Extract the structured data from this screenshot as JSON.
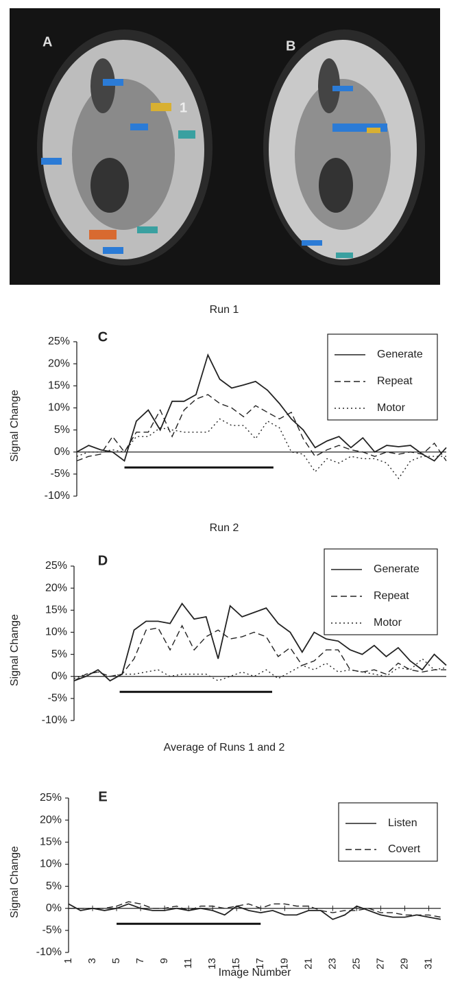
{
  "image_panel": {
    "labels": [
      "A",
      "B",
      "1"
    ]
  },
  "chart_data": [
    {
      "type": "line",
      "title": "Run 1",
      "panel_label": "C",
      "y_label": "Signal Change",
      "x": [
        1,
        2,
        3,
        4,
        5,
        6,
        7,
        8,
        9,
        10,
        11,
        12,
        13,
        14,
        15,
        16,
        17,
        18,
        19,
        20,
        21,
        22,
        23,
        24,
        25,
        26,
        27,
        28,
        29,
        30,
        31,
        32
      ],
      "xlim": [
        1,
        32
      ],
      "ylim": [
        -10,
        25
      ],
      "yticks": [
        {
          "value": 25,
          "label": "25%"
        },
        {
          "value": 20,
          "label": "20%"
        },
        {
          "value": 15,
          "label": "15%"
        },
        {
          "value": 10,
          "label": "10%"
        },
        {
          "value": 5,
          "label": "5%"
        },
        {
          "value": 0,
          "label": "0%"
        },
        {
          "value": -5,
          "label": "-5%"
        },
        {
          "value": -10,
          "label": "-10%"
        }
      ],
      "series": [
        {
          "name": "Generate",
          "color": "#222222",
          "style": "solid",
          "values": [
            0,
            1.5,
            0.5,
            0,
            -2,
            7,
            9.5,
            5,
            11.5,
            11.5,
            13,
            22,
            16.5,
            14.5,
            15.2,
            16,
            14,
            11,
            7.5,
            5,
            1,
            2.5,
            3.5,
            1,
            3.2,
            0,
            1.5,
            1.2,
            1.5,
            -0.5,
            -2,
            1
          ]
        },
        {
          "name": "Repeat",
          "color": "#222222",
          "style": "dashed",
          "values": [
            -2,
            -1,
            -0.5,
            3.5,
            0,
            4.5,
            4.5,
            9.5,
            3.5,
            9.5,
            12,
            13,
            11,
            10,
            8,
            10.5,
            9,
            7.5,
            9,
            3,
            -1,
            0.5,
            1.5,
            0.5,
            0,
            -1,
            0,
            -0.5,
            0,
            -0.5,
            2,
            -2
          ]
        },
        {
          "name": "Motor",
          "color": "#222222",
          "style": "dotted",
          "values": [
            -1,
            0,
            0,
            0.5,
            0,
            3.5,
            3.5,
            5.5,
            5,
            4.5,
            4.5,
            4.5,
            7.5,
            6,
            6,
            3,
            7,
            5.5,
            0,
            -0.5,
            -4.5,
            -1.5,
            -2.5,
            -1,
            -1.5,
            -1.5,
            -2.5,
            -6,
            -2,
            -1,
            -1,
            -1
          ]
        }
      ]
    },
    {
      "type": "line",
      "title": "Run 2",
      "panel_label": "D",
      "y_label": "Signal Change",
      "x": [
        1,
        2,
        3,
        4,
        5,
        6,
        7,
        8,
        9,
        10,
        11,
        12,
        13,
        14,
        15,
        16,
        17,
        18,
        19,
        20,
        21,
        22,
        23,
        24,
        25,
        26,
        27,
        28,
        29,
        30,
        31,
        32
      ],
      "xlim": [
        1,
        32
      ],
      "ylim": [
        -10,
        25
      ],
      "yticks": [
        {
          "value": 25,
          "label": "25%"
        },
        {
          "value": 20,
          "label": "20%"
        },
        {
          "value": 15,
          "label": "15%"
        },
        {
          "value": 10,
          "label": "10%"
        },
        {
          "value": 5,
          "label": "5%"
        },
        {
          "value": 0,
          "label": "0%"
        },
        {
          "value": -5,
          "label": "-5%"
        },
        {
          "value": -10,
          "label": "-10%"
        }
      ],
      "series": [
        {
          "name": "Generate",
          "color": "#222222",
          "style": "solid",
          "values": [
            -1,
            0,
            1.5,
            -1,
            0.5,
            10.5,
            12.5,
            12.5,
            12,
            16.5,
            13,
            13.5,
            4,
            16,
            13.5,
            14.5,
            15.5,
            12,
            10,
            5.5,
            10,
            8.5,
            8,
            6,
            5,
            7,
            4.5,
            6.5,
            3.5,
            1.5,
            5,
            2.5
          ]
        },
        {
          "name": "Repeat",
          "color": "#222222",
          "style": "dashed",
          "values": [
            -1,
            0.5,
            1,
            0,
            0.5,
            4,
            10.5,
            11,
            6,
            11.5,
            6,
            9,
            10.5,
            8.5,
            9,
            10,
            9,
            4.5,
            6.5,
            2.5,
            3.5,
            6,
            6,
            1.5,
            1,
            1.5,
            0.5,
            3,
            1.5,
            1,
            1.5,
            1.5
          ]
        },
        {
          "name": "Motor",
          "color": "#222222",
          "style": "dotted",
          "values": [
            -0.5,
            0.5,
            1,
            0,
            0.5,
            0.5,
            1,
            1.5,
            0,
            0.5,
            0.5,
            0.5,
            -1,
            0,
            1,
            0,
            1.5,
            -0.5,
            1,
            2.5,
            1.5,
            3,
            1,
            1.5,
            1,
            0.5,
            0,
            2,
            1.5,
            4,
            1.5,
            2
          ]
        }
      ]
    },
    {
      "type": "line",
      "title": "Average of Runs 1 and  2",
      "panel_label": "E",
      "y_label": "Signal Change",
      "x_label": "Image Number",
      "x": [
        1,
        2,
        3,
        4,
        5,
        6,
        7,
        8,
        9,
        10,
        11,
        12,
        13,
        14,
        15,
        16,
        17,
        18,
        19,
        20,
        21,
        22,
        23,
        24,
        25,
        26,
        27,
        28,
        29,
        30,
        31,
        32
      ],
      "xlim": [
        1,
        32
      ],
      "xticks": [
        1,
        3,
        5,
        7,
        9,
        11,
        13,
        15,
        17,
        19,
        21,
        23,
        25,
        27,
        29,
        31
      ],
      "ylim": [
        -10,
        25
      ],
      "yticks": [
        {
          "value": 25,
          "label": "25%"
        },
        {
          "value": 20,
          "label": "20%"
        },
        {
          "value": 15,
          "label": "15%"
        },
        {
          "value": 10,
          "label": "10%"
        },
        {
          "value": 5,
          "label": "5%"
        },
        {
          "value": 0,
          "label": "0%"
        },
        {
          "value": -5,
          "label": "-5%"
        },
        {
          "value": -10,
          "label": "-10%"
        }
      ],
      "series": [
        {
          "name": "Listen",
          "color": "#222222",
          "style": "solid",
          "values": [
            1,
            -0.5,
            0,
            -0.5,
            0,
            1,
            0,
            -0.5,
            -0.5,
            0,
            -0.5,
            0,
            -0.5,
            -1.5,
            0.5,
            -0.5,
            -1,
            -0.5,
            -1.5,
            -1.5,
            -0.5,
            -0.5,
            -2.5,
            -1.5,
            0.5,
            -0.5,
            -1.5,
            -2,
            -2,
            -1.5,
            -2,
            -2.5
          ]
        },
        {
          "name": "Covert",
          "color": "#222222",
          "style": "dashed",
          "values": [
            0,
            0,
            0,
            0,
            0.5,
            1.5,
            1,
            0,
            0,
            0.5,
            -0.5,
            0.5,
            0.5,
            0,
            0.5,
            1,
            0,
            1,
            1,
            0.5,
            0.5,
            -0.5,
            -1,
            -0.5,
            -0.5,
            0,
            -1,
            -1,
            -1.5,
            -1.5,
            -1.5,
            -2
          ]
        }
      ]
    }
  ]
}
